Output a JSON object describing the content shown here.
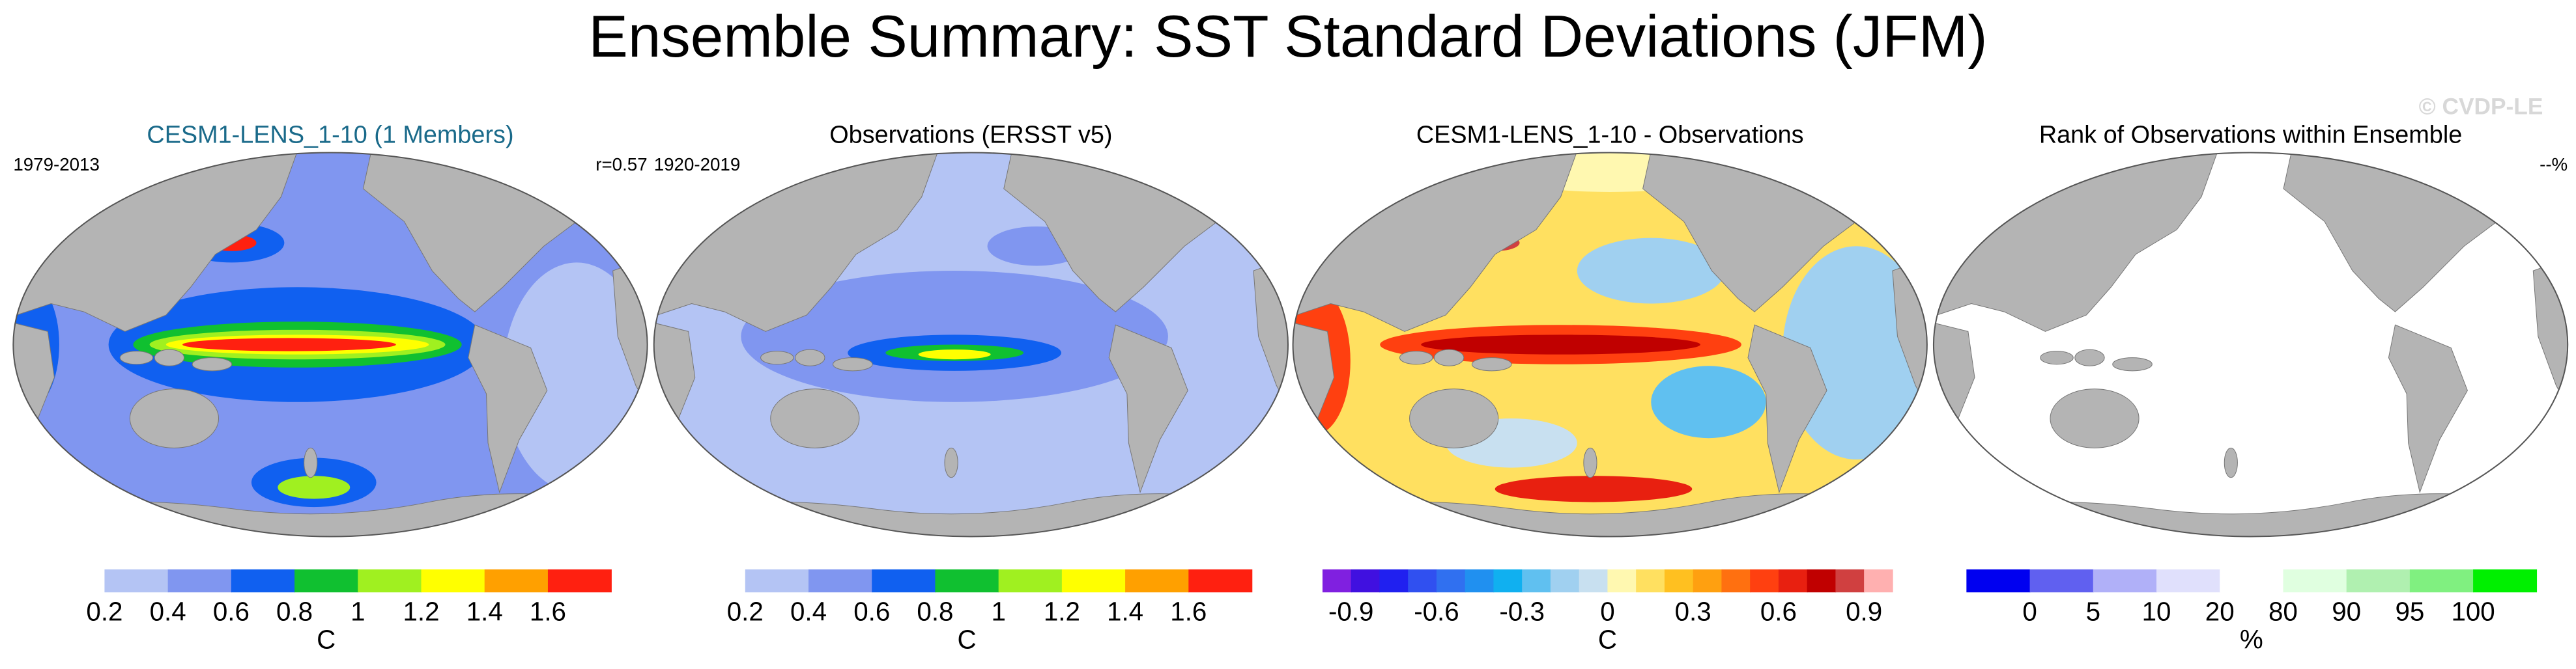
{
  "title": "Ensemble Summary: SST Standard Deviations (JFM)",
  "watermark": "© CVDP-LE",
  "panels": [
    {
      "title": "CESM1-LENS_1-10 (1 Members)",
      "left_label": "1979-2013",
      "right_label": "r=0.57",
      "colorbar": {
        "colors": [
          "#ffffff",
          "#b4c4f4",
          "#8096f0",
          "#1060f0",
          "#10c030",
          "#a0f020",
          "#ffff00",
          "#ffa000",
          "#ff2010"
        ],
        "ticks": [
          0.2,
          0.4,
          0.6,
          0.8,
          1,
          1.2,
          1.4,
          1.6
        ],
        "unit": "C"
      }
    },
    {
      "title": "Observations (ERSST v5)",
      "left_label": "1920-2019",
      "colorbar": {
        "colors": [
          "#ffffff",
          "#b4c4f4",
          "#8096f0",
          "#1060f0",
          "#10c030",
          "#a0f020",
          "#ffff00",
          "#ffa000",
          "#ff2010"
        ],
        "ticks": [
          0.2,
          0.4,
          0.6,
          0.8,
          1,
          1.2,
          1.4,
          1.6
        ],
        "unit": "C"
      }
    },
    {
      "title": "CESM1-LENS_1-10 - Observations",
      "colorbar": {
        "colors": [
          "#8020e0",
          "#4010e0",
          "#2020f0",
          "#3050f0",
          "#3070f0",
          "#2090f0",
          "#10b0f0",
          "#60c0f0",
          "#a0d0f0",
          "#c8e0f0",
          "#fff8b0",
          "#ffe060",
          "#ffc020",
          "#ffa010",
          "#ff7010",
          "#ff4010",
          "#e82010",
          "#c00000",
          "#d04040",
          "#ffb0b0"
        ],
        "lim": [
          -1,
          1
        ],
        "ticks": [
          -0.9,
          -0.6,
          -0.3,
          0,
          0.3,
          0.6,
          0.9
        ],
        "unit": "C"
      }
    },
    {
      "title": "Rank of Observations within Ensemble",
      "right_label": "--%",
      "colorbar": {
        "colors": [
          "#0000f0",
          "#6060f0",
          "#b0b0f8",
          "#e0e0fc",
          "#ffffff",
          "#e0ffe0",
          "#b0f0b0",
          "#80f080",
          "#00f000"
        ],
        "ticks": [
          0,
          5,
          10,
          20,
          80,
          90,
          95,
          100
        ],
        "unit": "%"
      }
    }
  ]
}
